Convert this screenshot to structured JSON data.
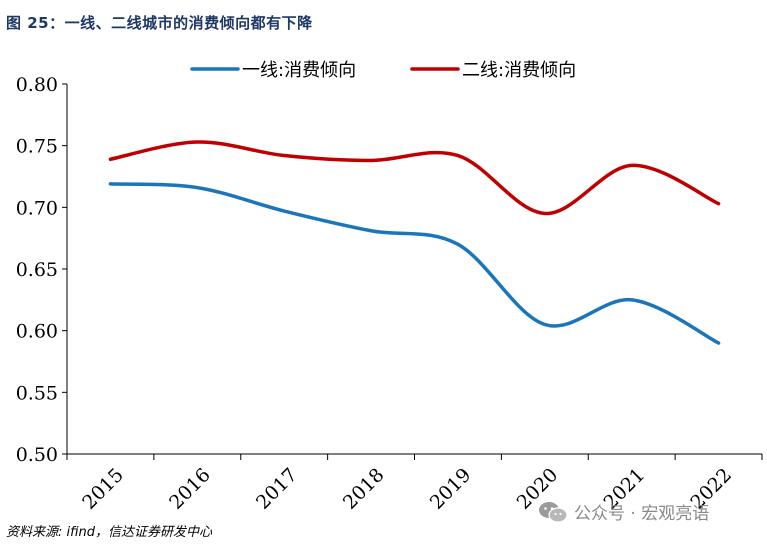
{
  "figure_title": "图 25：一线、二线城市的消费倾向都有下降",
  "source_note": "资料来源: ifind，信达证券研发中心",
  "watermark": "公众号 · 宏观亮语",
  "chart_data": {
    "type": "line",
    "title": "图 25：一线、二线城市的消费倾向都有下降",
    "xlabel": "",
    "ylabel": "",
    "categories": [
      "2015",
      "2016",
      "2017",
      "2018",
      "2019",
      "2020",
      "2021",
      "2022"
    ],
    "ylim": [
      0.5,
      0.8
    ],
    "yticks": [
      "0.50",
      "0.55",
      "0.60",
      "0.65",
      "0.70",
      "0.75",
      "0.80"
    ],
    "grid": false,
    "legend_position": "top",
    "series": [
      {
        "name": "一线:消费倾向",
        "color": "#1a75bb",
        "values": [
          0.719,
          0.716,
          0.697,
          0.681,
          0.67,
          0.605,
          0.625,
          0.59
        ]
      },
      {
        "name": "二线:消费倾向",
        "color": "#c00000",
        "values": [
          0.739,
          0.753,
          0.742,
          0.738,
          0.742,
          0.695,
          0.734,
          0.703
        ]
      }
    ]
  }
}
